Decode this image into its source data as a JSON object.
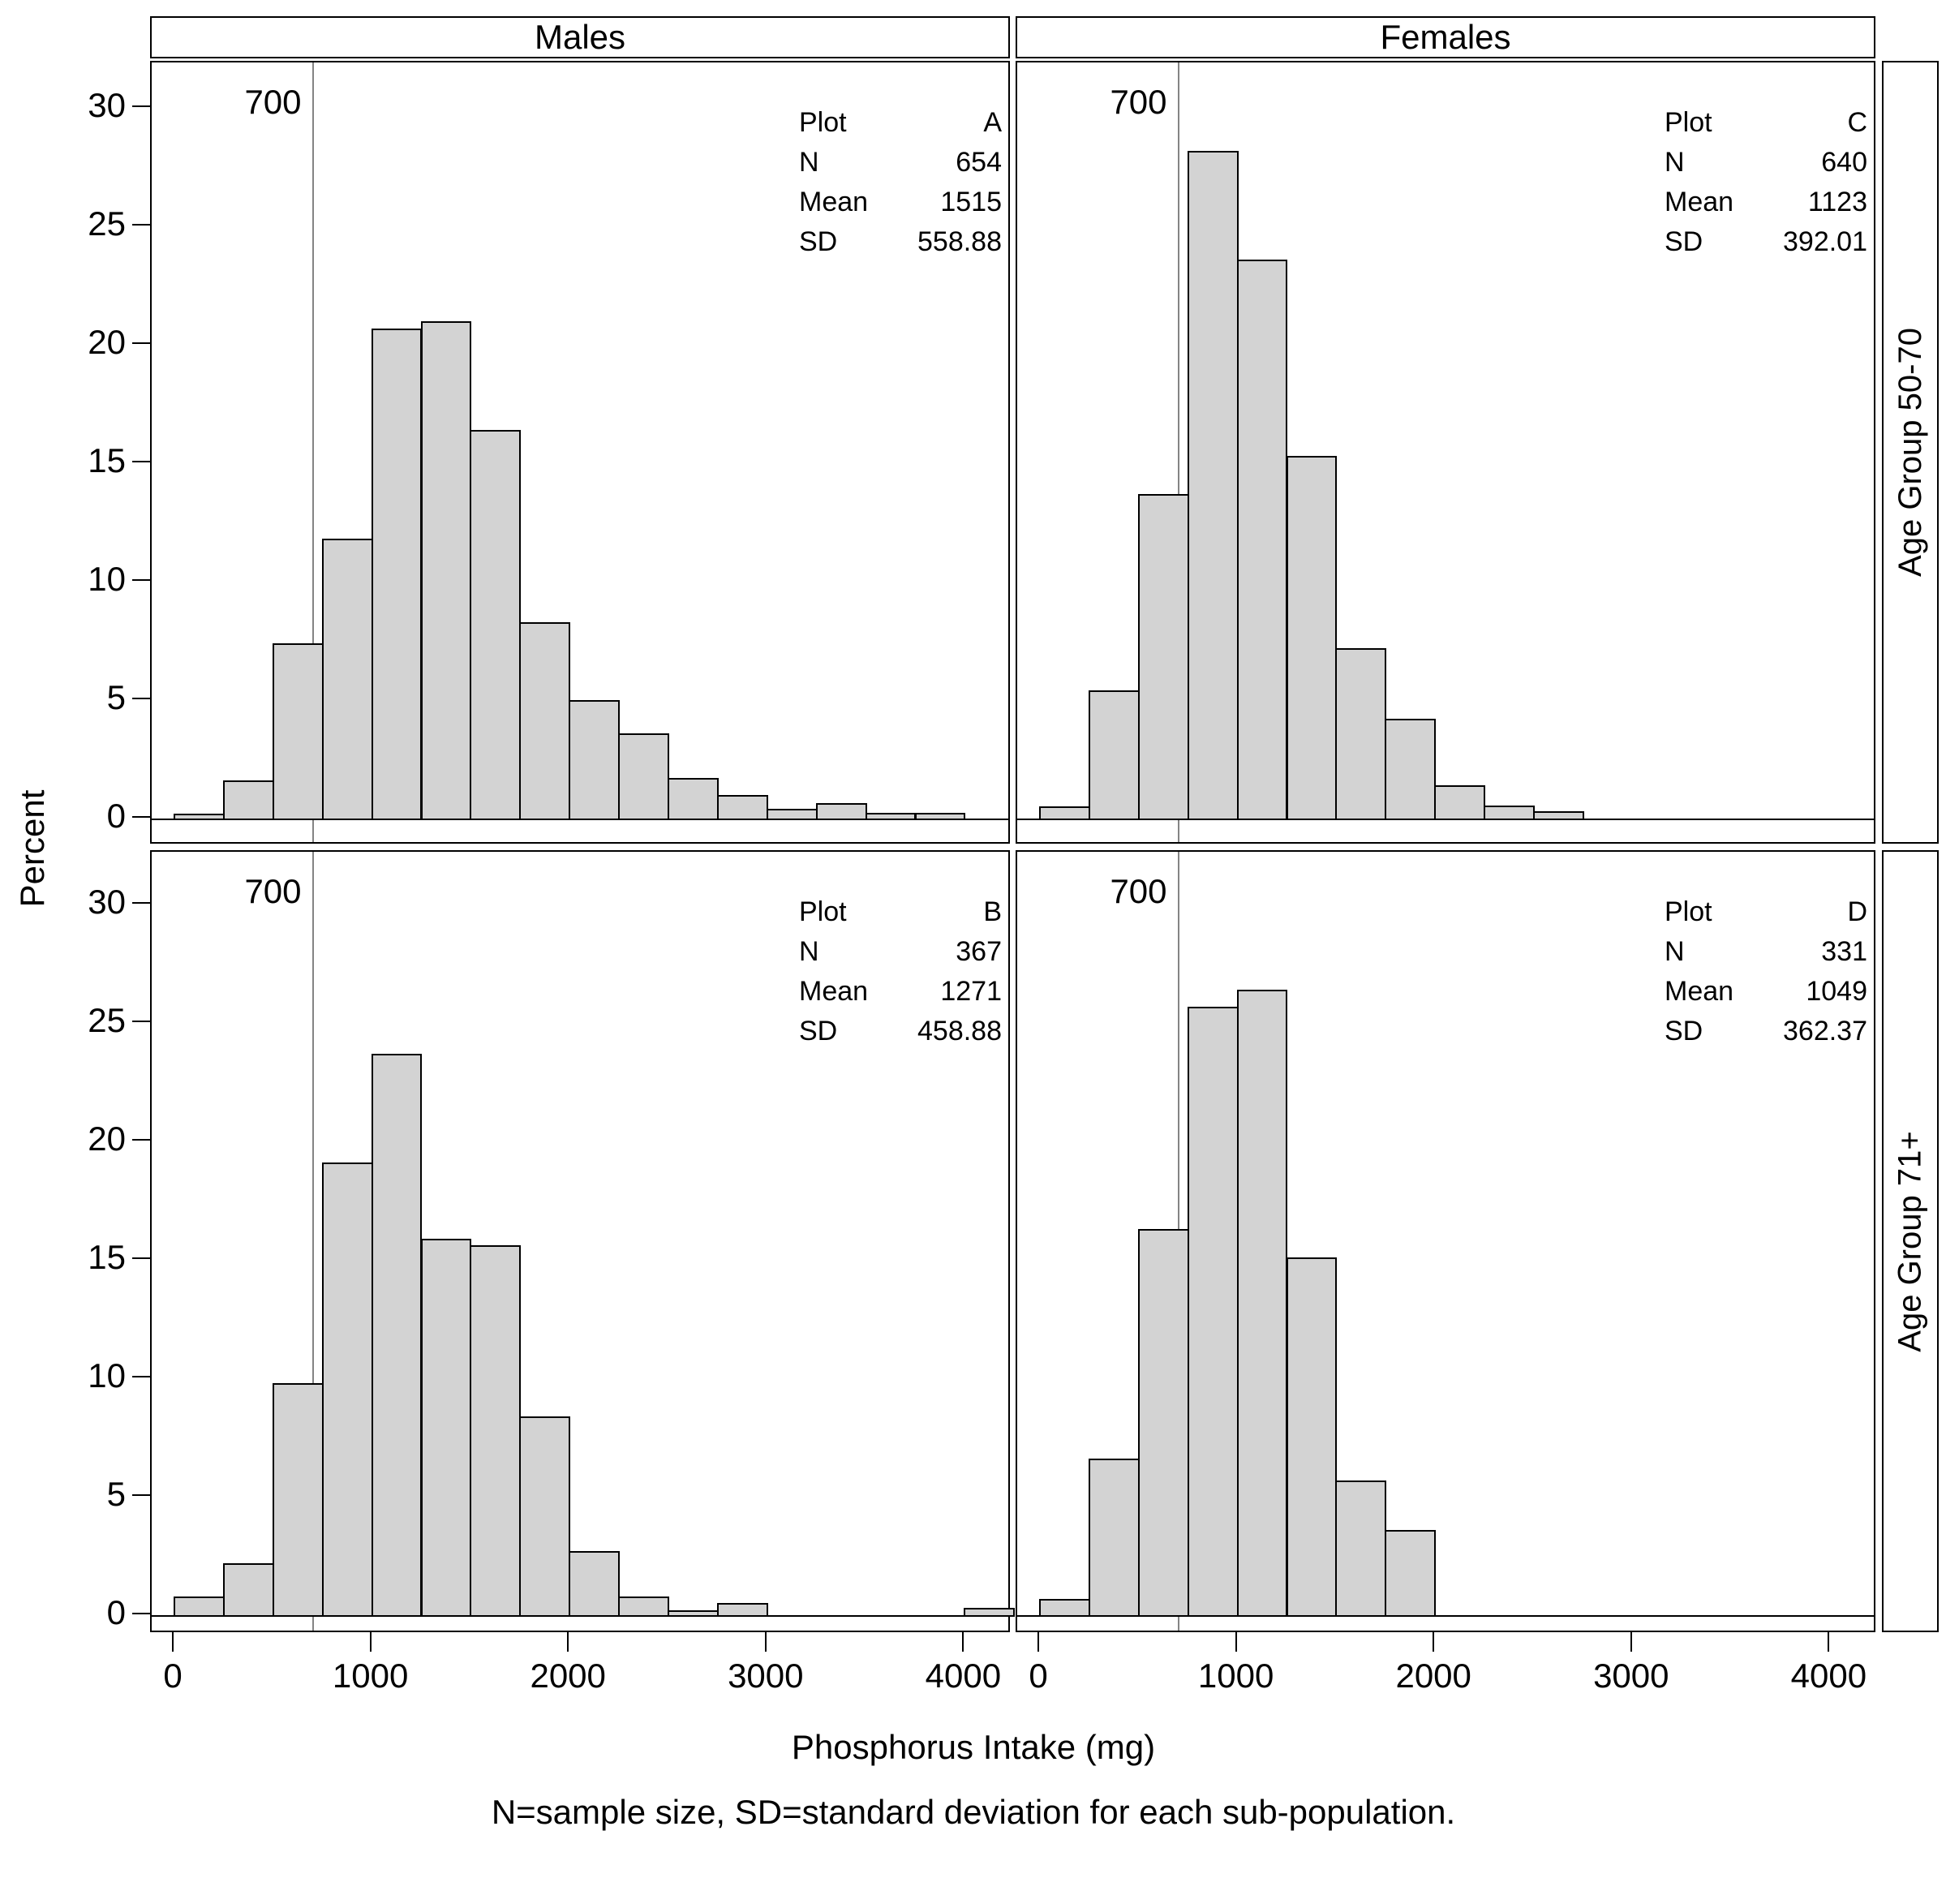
{
  "columns": [
    "Males",
    "Females"
  ],
  "rows": [
    "Age Group 50-70",
    "Age Group 71+"
  ],
  "axes": {
    "y_title": "Percent",
    "x_title": "Phosphorus Intake (mg)",
    "y_ticks": [
      0,
      5,
      10,
      15,
      20,
      25,
      30
    ],
    "x_ticks": [
      0,
      1000,
      2000,
      3000,
      4000
    ]
  },
  "footnote": "N=sample size, SD=standard deviation for each sub-population.",
  "reference_line": {
    "value": 700,
    "label": "700"
  },
  "stats_labels": [
    "Plot",
    "N",
    "Mean",
    "SD"
  ],
  "chart_data": [
    {
      "type": "bar",
      "subtype": "histogram",
      "panel": "A",
      "column": "Males",
      "row": "Age Group 50-70",
      "bin_start": 0,
      "bin_width": 250,
      "values_percent": [
        0.2,
        1.6,
        7.4,
        11.8,
        20.7,
        21.0,
        16.4,
        8.3,
        5.0,
        3.6,
        1.7,
        1.0,
        0.4,
        0.65,
        0.25,
        0.25
      ],
      "stats": {
        "Plot": "A",
        "N": "654",
        "Mean": "1515",
        "SD": "558.88"
      },
      "x_reference_line": 700,
      "xlim": [
        0,
        4350
      ],
      "ylim": [
        0,
        32
      ],
      "grid": false
    },
    {
      "type": "bar",
      "subtype": "histogram",
      "panel": "C",
      "column": "Females",
      "row": "Age Group 50-70",
      "bin_start": 0,
      "bin_width": 250,
      "values_percent": [
        0.5,
        5.4,
        13.7,
        28.2,
        23.6,
        15.3,
        7.2,
        4.2,
        1.4,
        0.55,
        0.3
      ],
      "stats": {
        "Plot": "C",
        "N": "640",
        "Mean": "1123",
        "SD": "392.01"
      },
      "x_reference_line": 700,
      "xlim": [
        0,
        4350
      ],
      "ylim": [
        0,
        32
      ],
      "grid": false
    },
    {
      "type": "bar",
      "subtype": "histogram",
      "panel": "B",
      "column": "Males",
      "row": "Age Group 71+",
      "bin_start": 0,
      "bin_width": 250,
      "values_percent": [
        0.8,
        2.2,
        9.8,
        19.1,
        23.7,
        15.9,
        15.6,
        8.4,
        2.7,
        0.8,
        0.2,
        0.5,
        0,
        0,
        0,
        0,
        0.3
      ],
      "stats": {
        "Plot": "B",
        "N": "367",
        "Mean": "1271",
        "SD": "458.88"
      },
      "x_reference_line": 700,
      "xlim": [
        0,
        4350
      ],
      "ylim": [
        0,
        32
      ],
      "grid": false
    },
    {
      "type": "bar",
      "subtype": "histogram",
      "panel": "D",
      "column": "Females",
      "row": "Age Group 71+",
      "bin_start": 0,
      "bin_width": 250,
      "values_percent": [
        0.7,
        6.6,
        16.3,
        25.7,
        26.4,
        15.1,
        5.7,
        3.6
      ],
      "stats": {
        "Plot": "D",
        "N": "331",
        "Mean": "1049",
        "SD": "362.37"
      },
      "x_reference_line": 700,
      "xlim": [
        0,
        4350
      ],
      "ylim": [
        0,
        32
      ],
      "grid": false
    }
  ]
}
